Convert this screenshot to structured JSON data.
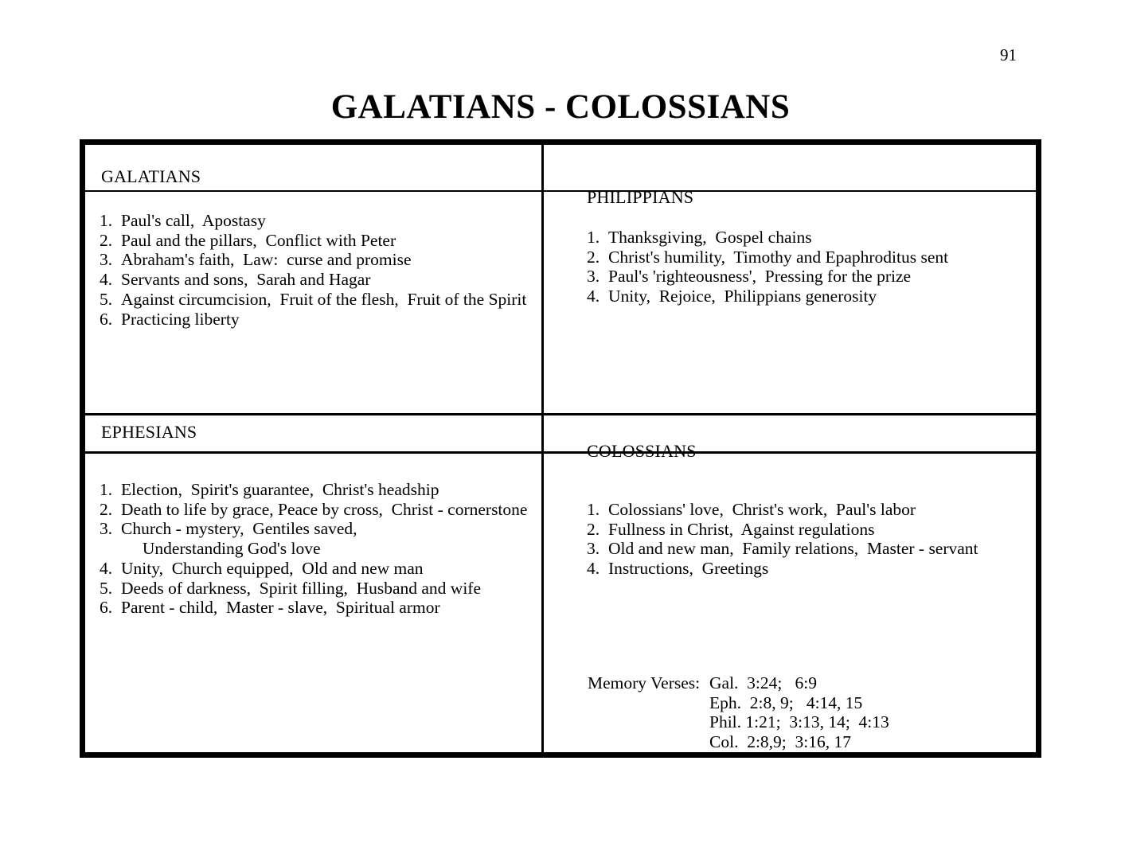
{
  "page": {
    "number": "91",
    "title": "GALATIANS - COLOSSIANS"
  },
  "sections": {
    "galatians": {
      "heading": "GALATIANS",
      "items": [
        "Paul's call,  Apostasy",
        "Paul and the pillars,  Conflict with Peter",
        "Abraham's faith,  Law:  curse and promise",
        "Servants and sons,  Sarah and Hagar",
        "Against circumcision,  Fruit of the flesh,  Fruit of the Spirit",
        "Practicing liberty"
      ]
    },
    "philippians": {
      "heading": "PHILIPPIANS",
      "items": [
        "Thanksgiving,  Gospel chains",
        "Christ's humility,  Timothy and Epaphroditus sent",
        "Paul's 'righteousness',  Pressing for the prize",
        "Unity,  Rejoice,  Philippians generosity"
      ]
    },
    "ephesians": {
      "heading": "EPHESIANS",
      "items": [
        "Election,  Spirit's guarantee,  Christ's headship",
        "Death to life by grace, Peace by cross,  Christ - cornerstone",
        "Church - mystery,  Gentiles saved,\n     Understanding God's love",
        "Unity,  Church equipped,  Old and new man",
        "Deeds of darkness,  Spirit filling,  Husband and wife",
        "Parent - child,  Master - slave,  Spiritual armor"
      ]
    },
    "colossians": {
      "heading": "COLOSSIANS",
      "items": [
        "Colossians' love,  Christ's work,  Paul's labor",
        "Fullness in Christ,  Against regulations",
        "Old and new man,  Family relations,  Master - servant",
        "Instructions,  Greetings"
      ]
    }
  },
  "memory_verses": {
    "label": "Memory Verses:",
    "references": [
      "Gal.  3:24;   6:9",
      "Eph.  2:8, 9;   4:14, 15",
      "Phil. 1:21;  3:13, 14;  4:13",
      "Col.  2:8,9;  3:16, 17"
    ]
  }
}
